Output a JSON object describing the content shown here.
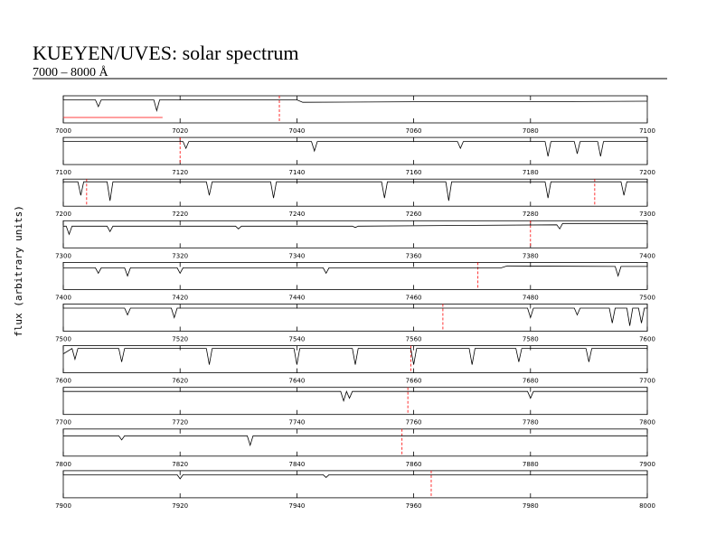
{
  "header": {
    "title": "KUEYEN/UVES: solar spectrum",
    "subtitle": "7000 – 8000 Å",
    "ylabel": "flux (arbitrary units)"
  },
  "chart_data": [
    {
      "type": "line",
      "color": "#000000",
      "ref_color": "#ff0000",
      "xlim": [
        7000,
        7100
      ],
      "ylim": [
        0,
        1
      ],
      "xticks": [
        7000,
        7020,
        7040,
        7060,
        7080,
        7100
      ],
      "reference_x": [
        7037
      ],
      "reference_segment": {
        "x": [
          7000,
          7017
        ],
        "y": 0.2
      },
      "x": [
        7000,
        7005.5,
        7006,
        7006.5,
        7015.5,
        7016,
        7016.5,
        7040,
        7041,
        7060,
        7080,
        7100
      ],
      "values": [
        0.85,
        0.85,
        0.6,
        0.85,
        0.85,
        0.45,
        0.85,
        0.85,
        0.76,
        0.78,
        0.78,
        0.8
      ]
    },
    {
      "type": "line",
      "color": "#000000",
      "ref_color": "#ff0000",
      "xlim": [
        7100,
        7200
      ],
      "ylim": [
        0,
        1
      ],
      "xticks": [
        7100,
        7120,
        7140,
        7160,
        7180,
        7200
      ],
      "reference_x": [
        7120
      ],
      "x": [
        7100,
        7120.5,
        7121,
        7121.5,
        7142.5,
        7143,
        7143.5,
        7167.5,
        7168,
        7168.5,
        7182.5,
        7183,
        7183.5,
        7187.5,
        7188,
        7188.5,
        7191.5,
        7192,
        7192.5,
        7200
      ],
      "values": [
        0.85,
        0.85,
        0.6,
        0.85,
        0.85,
        0.5,
        0.85,
        0.85,
        0.6,
        0.85,
        0.85,
        0.3,
        0.85,
        0.85,
        0.4,
        0.85,
        0.85,
        0.3,
        0.85,
        0.85
      ]
    },
    {
      "type": "line",
      "color": "#000000",
      "ref_color": "#ff0000",
      "xlim": [
        7200,
        7300
      ],
      "ylim": [
        0,
        1
      ],
      "xticks": [
        7200,
        7220,
        7240,
        7260,
        7280,
        7300
      ],
      "reference_x": [
        7204,
        7291
      ],
      "x": [
        7200,
        7202.5,
        7203,
        7203.5,
        7207.5,
        7208,
        7208.5,
        7224.5,
        7225,
        7225.5,
        7235.5,
        7236,
        7236.5,
        7254.5,
        7255,
        7255.5,
        7265.5,
        7266,
        7266.5,
        7282.5,
        7283,
        7283.5,
        7295.5,
        7296,
        7296.5,
        7300
      ],
      "values": [
        0.9,
        0.9,
        0.4,
        0.9,
        0.9,
        0.2,
        0.9,
        0.9,
        0.4,
        0.9,
        0.9,
        0.3,
        0.9,
        0.9,
        0.3,
        0.9,
        0.9,
        0.2,
        0.9,
        0.9,
        0.3,
        0.9,
        0.9,
        0.4,
        0.9,
        0.9
      ]
    },
    {
      "type": "line",
      "color": "#000000",
      "ref_color": "#ff0000",
      "xlim": [
        7300,
        7400
      ],
      "ylim": [
        0,
        1
      ],
      "xticks": [
        7300,
        7320,
        7340,
        7360,
        7380,
        7400
      ],
      "reference_x": [
        7380
      ],
      "x": [
        7300,
        7300.5,
        7301,
        7301.5,
        7307.5,
        7308,
        7308.5,
        7329.5,
        7330,
        7330.5,
        7349.5,
        7350,
        7350.5,
        7384.5,
        7385,
        7385.5,
        7400
      ],
      "values": [
        0.8,
        0.8,
        0.5,
        0.8,
        0.8,
        0.6,
        0.8,
        0.8,
        0.7,
        0.8,
        0.8,
        0.75,
        0.8,
        0.85,
        0.7,
        0.9,
        0.9
      ]
    },
    {
      "type": "line",
      "color": "#000000",
      "ref_color": "#ff0000",
      "xlim": [
        7400,
        7500
      ],
      "ylim": [
        0,
        1
      ],
      "xticks": [
        7400,
        7420,
        7440,
        7460,
        7480,
        7500
      ],
      "reference_x": [
        7471
      ],
      "x": [
        7400,
        7405.5,
        7406,
        7406.5,
        7410.5,
        7411,
        7411.5,
        7419.5,
        7420,
        7420.5,
        7444.5,
        7445,
        7445.5,
        7475,
        7476,
        7494.5,
        7495,
        7495.5,
        7500
      ],
      "values": [
        0.8,
        0.8,
        0.6,
        0.8,
        0.8,
        0.5,
        0.8,
        0.8,
        0.6,
        0.8,
        0.8,
        0.6,
        0.8,
        0.8,
        0.87,
        0.85,
        0.5,
        0.85,
        0.85
      ]
    },
    {
      "type": "line",
      "color": "#000000",
      "ref_color": "#ff0000",
      "xlim": [
        7500,
        7600
      ],
      "ylim": [
        0,
        1
      ],
      "xticks": [
        7500,
        7520,
        7540,
        7560,
        7580,
        7600
      ],
      "reference_x": [
        7565
      ],
      "x": [
        7500,
        7510.5,
        7511,
        7511.5,
        7518.5,
        7519,
        7519.5,
        7579.5,
        7580,
        7580.5,
        7587.5,
        7588,
        7588.5,
        7593.5,
        7594,
        7594.5,
        7596.5,
        7597,
        7597.5,
        7598.5,
        7599,
        7599.5,
        7600
      ],
      "values": [
        0.85,
        0.85,
        0.6,
        0.85,
        0.85,
        0.5,
        0.85,
        0.85,
        0.5,
        0.85,
        0.85,
        0.6,
        0.85,
        0.85,
        0.3,
        0.85,
        0.85,
        0.2,
        0.85,
        0.85,
        0.3,
        0.85,
        0.85
      ]
    },
    {
      "type": "line",
      "color": "#000000",
      "ref_color": "#ff0000",
      "xlim": [
        7600,
        7700
      ],
      "ylim": [
        0,
        1
      ],
      "xticks": [
        7600,
        7620,
        7640,
        7660,
        7680,
        7700
      ],
      "reference_x": [
        7659.5
      ],
      "x": [
        7600,
        7601.5,
        7602,
        7602.5,
        7609.5,
        7610,
        7610.5,
        7624.5,
        7625,
        7625.5,
        7639.5,
        7640,
        7640.5,
        7649.5,
        7650,
        7650.5,
        7659.5,
        7660,
        7660.5,
        7669.5,
        7670,
        7670.5,
        7677.5,
        7678,
        7678.5,
        7689.5,
        7690,
        7690.5,
        7700
      ],
      "values": [
        0.7,
        0.9,
        0.5,
        0.9,
        0.9,
        0.4,
        0.9,
        0.9,
        0.3,
        0.9,
        0.9,
        0.3,
        0.9,
        0.9,
        0.3,
        0.9,
        0.9,
        0.3,
        0.9,
        0.9,
        0.3,
        0.9,
        0.9,
        0.4,
        0.9,
        0.9,
        0.4,
        0.9,
        0.9
      ]
    },
    {
      "type": "line",
      "color": "#000000",
      "ref_color": "#ff0000",
      "xlim": [
        7700,
        7800
      ],
      "ylim": [
        0,
        1
      ],
      "xticks": [
        7700,
        7720,
        7740,
        7760,
        7780,
        7800
      ],
      "reference_x": [
        7759
      ],
      "x": [
        7700,
        7747.5,
        7748,
        7748.5,
        7749,
        7749.5,
        7779.5,
        7780,
        7780.5,
        7800
      ],
      "values": [
        0.85,
        0.85,
        0.5,
        0.85,
        0.6,
        0.85,
        0.85,
        0.6,
        0.85,
        0.85
      ]
    },
    {
      "type": "line",
      "color": "#000000",
      "ref_color": "#ff0000",
      "xlim": [
        7800,
        7900
      ],
      "ylim": [
        0,
        1
      ],
      "xticks": [
        7800,
        7820,
        7840,
        7860,
        7880,
        7900
      ],
      "reference_x": [
        7858
      ],
      "x": [
        7800,
        7809.5,
        7810,
        7810.5,
        7831.5,
        7832,
        7832.5,
        7900
      ],
      "values": [
        0.75,
        0.75,
        0.6,
        0.75,
        0.75,
        0.4,
        0.75,
        0.75
      ]
    },
    {
      "type": "line",
      "color": "#000000",
      "ref_color": "#ff0000",
      "xlim": [
        7900,
        8000
      ],
      "ylim": [
        0,
        1
      ],
      "xticks": [
        7900,
        7920,
        7940,
        7960,
        7980,
        8000
      ],
      "reference_x": [
        7963
      ],
      "x": [
        7900,
        7919.5,
        7920,
        7920.5,
        7944.5,
        7945,
        7945.5,
        8000
      ],
      "values": [
        0.85,
        0.85,
        0.7,
        0.85,
        0.85,
        0.75,
        0.85,
        0.85
      ]
    }
  ]
}
